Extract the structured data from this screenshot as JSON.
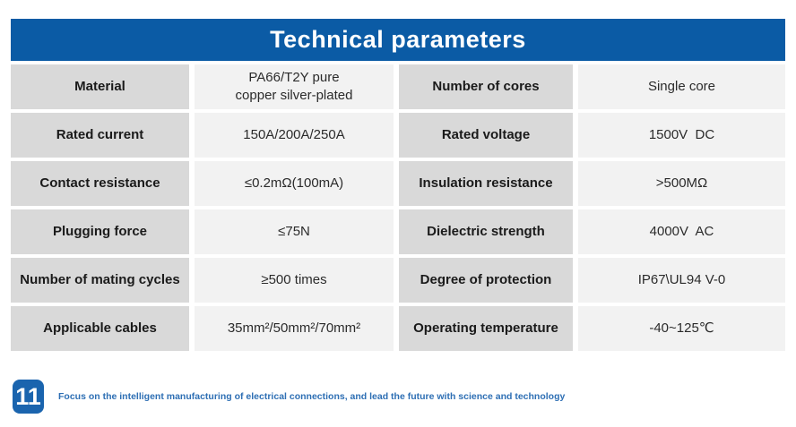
{
  "header": {
    "title": "Technical parameters"
  },
  "table": {
    "rows": [
      {
        "label1": "Material",
        "value1": "PA66/T2Y pure\ncopper silver-plated",
        "label2": "Number of cores",
        "value2": "Single core"
      },
      {
        "label1": "Rated current",
        "value1": "150A/200A/250A",
        "label2": "Rated voltage",
        "value2": "1500V  DC"
      },
      {
        "label1": "Contact resistance",
        "value1": "≤0.2mΩ(100mA)",
        "label2": "Insulation resistance",
        "value2": ">500MΩ"
      },
      {
        "label1": "Plugging force",
        "value1": "≤75N",
        "label2": "Dielectric strength",
        "value2": "4000V  AC"
      },
      {
        "label1": "Number of mating cycles",
        "value1": "≥500 times",
        "label2": "Degree of protection",
        "value2": "IP67\\UL94 V-0"
      },
      {
        "label1": "Applicable cables",
        "value1": "35mm²/50mm²/70mm²",
        "label2": "Operating temperature",
        "value2": "-40~125℃"
      }
    ]
  },
  "footer": {
    "page_number": "11",
    "tagline": "Focus on the intelligent manufacturing of electrical connections, and lead the future with science and technology"
  },
  "colors": {
    "header_bg": "#0b5ba5",
    "label_cell_bg": "#d9d9d9",
    "value_cell_bg": "#f2f2f2",
    "page_number_bg": "#1a64ae",
    "tagline_text": "#2e6fb4"
  }
}
